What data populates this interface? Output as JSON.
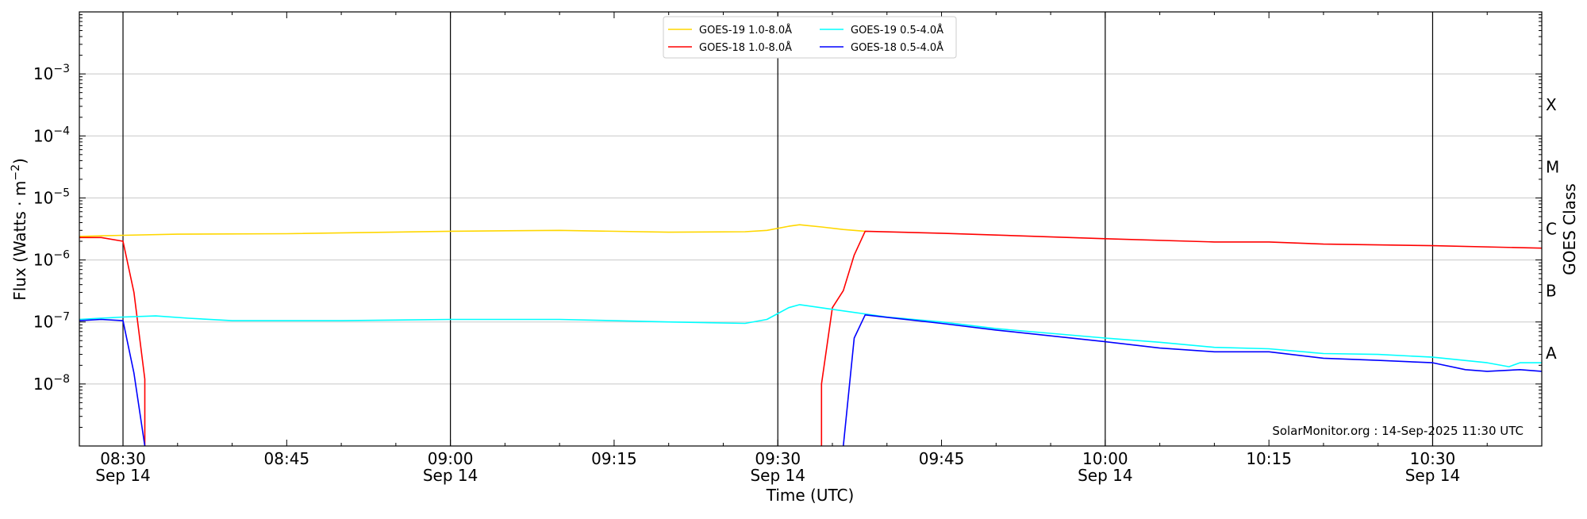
{
  "chart_data": {
    "type": "line",
    "xlabel": "Time (UTC)",
    "ylabel_prefix": "Flux (Watts · m",
    "ylabel_exp": "−2",
    "ylabel_suffix": ")",
    "right_axis_label": "GOES Class",
    "y_scale": "log",
    "ylim": [
      1e-09,
      0.01
    ],
    "xlim": [
      "08:26",
      "10:40"
    ],
    "grid": "horizontal at each decade; vertical lines every 30 min",
    "legend_position": "top-center",
    "y_ticks": [
      {
        "label": "10",
        "exp": "−3",
        "value": -3
      },
      {
        "label": "10",
        "exp": "−4",
        "value": -4
      },
      {
        "label": "10",
        "exp": "−5",
        "value": -5
      },
      {
        "label": "10",
        "exp": "−6",
        "value": -6
      },
      {
        "label": "10",
        "exp": "−7",
        "value": -7
      },
      {
        "label": "10",
        "exp": "−8",
        "value": -8
      }
    ],
    "goes_classes": [
      {
        "label": "X",
        "value": -3.5
      },
      {
        "label": "M",
        "value": -4.5
      },
      {
        "label": "C",
        "value": -5.5
      },
      {
        "label": "B",
        "value": -6.5
      },
      {
        "label": "A",
        "value": -7.5
      }
    ],
    "x_ticks": [
      {
        "time": "08:30",
        "date": "Sep 14"
      },
      {
        "time": "08:45",
        "date": ""
      },
      {
        "time": "09:00",
        "date": "Sep 14"
      },
      {
        "time": "09:15",
        "date": ""
      },
      {
        "time": "09:30",
        "date": "Sep 14"
      },
      {
        "time": "09:45",
        "date": ""
      },
      {
        "time": "10:00",
        "date": "Sep 14"
      },
      {
        "time": "10:15",
        "date": ""
      },
      {
        "time": "10:30",
        "date": "Sep 14"
      }
    ],
    "credit": "SolarMonitor.org : 14-Sep-2025 11:30 UTC",
    "series": [
      {
        "name": "GOES-19 1.0-8.0Å",
        "color": "#ffd700",
        "points": [
          [
            "08:26",
            2.4e-06
          ],
          [
            "08:30",
            2.5e-06
          ],
          [
            "08:35",
            2.6e-06
          ],
          [
            "08:45",
            2.65e-06
          ],
          [
            "09:00",
            2.9e-06
          ],
          [
            "09:10",
            3e-06
          ],
          [
            "09:20",
            2.8e-06
          ],
          [
            "09:27",
            2.85e-06
          ],
          [
            "09:29",
            3e-06
          ],
          [
            "09:31",
            3.5e-06
          ],
          [
            "09:32",
            3.7e-06
          ],
          [
            "09:34",
            3.4e-06
          ],
          [
            "09:36",
            3.1e-06
          ],
          [
            "09:38",
            2.9e-06
          ]
        ]
      },
      {
        "name": "GOES-18 1.0-8.0Å",
        "color": "#ff0000",
        "points": [
          [
            "08:26",
            2.3e-06
          ],
          [
            "08:28",
            2.3e-06
          ],
          [
            "08:30",
            2e-06
          ],
          [
            "08:31",
            3e-07
          ],
          [
            "08:32",
            1.2e-08
          ],
          [
            "08:32",
            1e-09
          ]
        ],
        "points_2": [
          [
            "09:34",
            1e-09
          ],
          [
            "09:34",
            1e-08
          ],
          [
            "09:35",
            1.7e-07
          ],
          [
            "09:36",
            3.2e-07
          ],
          [
            "09:37",
            1.2e-06
          ],
          [
            "09:38",
            2.9e-06
          ],
          [
            "09:45",
            2.7e-06
          ],
          [
            "10:00",
            2.2e-06
          ],
          [
            "10:10",
            1.95e-06
          ],
          [
            "10:15",
            1.95e-06
          ],
          [
            "10:20",
            1.8e-06
          ],
          [
            "10:30",
            1.7e-06
          ],
          [
            "10:40",
            1.55e-06
          ]
        ]
      },
      {
        "name": "GOES-19 0.5-4.0Å",
        "color": "#00ffff",
        "points": [
          [
            "08:26",
            1.1e-07
          ],
          [
            "08:30",
            1.2e-07
          ],
          [
            "08:33",
            1.25e-07
          ],
          [
            "08:36",
            1.15e-07
          ],
          [
            "08:40",
            1.05e-07
          ],
          [
            "08:50",
            1.05e-07
          ],
          [
            "09:00",
            1.1e-07
          ],
          [
            "09:10",
            1.1e-07
          ],
          [
            "09:20",
            1e-07
          ],
          [
            "09:27",
            9.5e-08
          ],
          [
            "09:29",
            1.1e-07
          ],
          [
            "09:31",
            1.7e-07
          ],
          [
            "09:32",
            1.9e-07
          ],
          [
            "09:35",
            1.6e-07
          ],
          [
            "09:40",
            1.2e-07
          ],
          [
            "09:45",
            1e-07
          ],
          [
            "09:50",
            7.8e-08
          ],
          [
            "10:00",
            5.5e-08
          ],
          [
            "10:05",
            4.7e-08
          ],
          [
            "10:10",
            3.9e-08
          ],
          [
            "10:15",
            3.7e-08
          ],
          [
            "10:20",
            3.1e-08
          ],
          [
            "10:25",
            3e-08
          ],
          [
            "10:30",
            2.7e-08
          ],
          [
            "10:35",
            2.2e-08
          ],
          [
            "10:37",
            1.9e-08
          ],
          [
            "10:38",
            2.2e-08
          ],
          [
            "10:40",
            2.2e-08
          ]
        ]
      },
      {
        "name": "GOES-18 0.5-4.0Å",
        "color": "#0000ff",
        "points": [
          [
            "08:26",
            1.05e-07
          ],
          [
            "08:28",
            1.1e-07
          ],
          [
            "08:30",
            1.05e-07
          ],
          [
            "08:31",
            1.5e-08
          ],
          [
            "08:32",
            1e-09
          ]
        ],
        "points_2": [
          [
            "09:36",
            1e-09
          ],
          [
            "09:37",
            5.5e-08
          ],
          [
            "09:38",
            1.3e-07
          ],
          [
            "09:45",
            9.5e-08
          ],
          [
            "09:50",
            7.4e-08
          ],
          [
            "10:00",
            4.8e-08
          ],
          [
            "10:05",
            3.8e-08
          ],
          [
            "10:10",
            3.3e-08
          ],
          [
            "10:15",
            3.3e-08
          ],
          [
            "10:20",
            2.6e-08
          ],
          [
            "10:25",
            2.4e-08
          ],
          [
            "10:30",
            2.2e-08
          ],
          [
            "10:33",
            1.7e-08
          ],
          [
            "10:35",
            1.6e-08
          ],
          [
            "10:38",
            1.7e-08
          ],
          [
            "10:40",
            1.6e-08
          ]
        ]
      }
    ]
  }
}
